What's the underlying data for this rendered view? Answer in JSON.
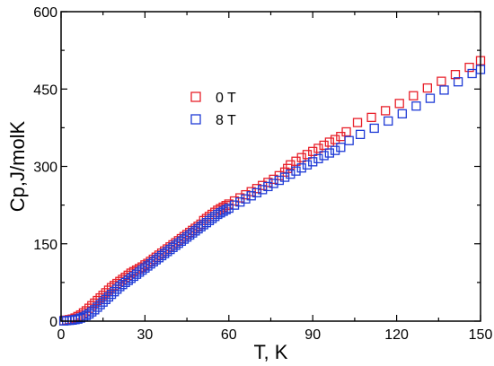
{
  "chart_data": {
    "type": "scatter",
    "xlabel": "T, K",
    "ylabel": "Cp,J/molK",
    "xlim": [
      0,
      150
    ],
    "ylim": [
      0,
      600
    ],
    "xticks": [
      "0",
      "30",
      "60",
      "90",
      "120",
      "150"
    ],
    "yticks": [
      "0",
      "150",
      "300",
      "450",
      "600"
    ],
    "grid": false,
    "legend_position": "upper-left",
    "series": [
      {
        "name": "0 T",
        "color": "#e8202a",
        "marker": "square-open",
        "points": [
          [
            1,
            1
          ],
          [
            2,
            2
          ],
          [
            3,
            3
          ],
          [
            4,
            4
          ],
          [
            5,
            6
          ],
          [
            6,
            9
          ],
          [
            7,
            12
          ],
          [
            8,
            16
          ],
          [
            9,
            20
          ],
          [
            10,
            25
          ],
          [
            11,
            30
          ],
          [
            12,
            35
          ],
          [
            13,
            40
          ],
          [
            14,
            45
          ],
          [
            15,
            50
          ],
          [
            16,
            55
          ],
          [
            17,
            60
          ],
          [
            18,
            65
          ],
          [
            19,
            69
          ],
          [
            20,
            73
          ],
          [
            21,
            77
          ],
          [
            22,
            81
          ],
          [
            23,
            85
          ],
          [
            24,
            89
          ],
          [
            25,
            93
          ],
          [
            26,
            96
          ],
          [
            27,
            99
          ],
          [
            28,
            102
          ],
          [
            29,
            105
          ],
          [
            30,
            109
          ],
          [
            31,
            112
          ],
          [
            32,
            116
          ],
          [
            33,
            120
          ],
          [
            34,
            124
          ],
          [
            35,
            128
          ],
          [
            36,
            132
          ],
          [
            37,
            136
          ],
          [
            38,
            140
          ],
          [
            39,
            144
          ],
          [
            40,
            148
          ],
          [
            41,
            152
          ],
          [
            42,
            156
          ],
          [
            43,
            160
          ],
          [
            44,
            164
          ],
          [
            45,
            168
          ],
          [
            46,
            172
          ],
          [
            47,
            176
          ],
          [
            48,
            180
          ],
          [
            49,
            184
          ],
          [
            50,
            188
          ],
          [
            51,
            195
          ],
          [
            52,
            199
          ],
          [
            53,
            203
          ],
          [
            54,
            207
          ],
          [
            55,
            211
          ],
          [
            56,
            215
          ],
          [
            57,
            218
          ],
          [
            58,
            221
          ],
          [
            59,
            224
          ],
          [
            60,
            227
          ],
          [
            62,
            233
          ],
          [
            64,
            239
          ],
          [
            66,
            245
          ],
          [
            68,
            251
          ],
          [
            70,
            257
          ],
          [
            72,
            263
          ],
          [
            74,
            269
          ],
          [
            76,
            275
          ],
          [
            78,
            282
          ],
          [
            80,
            289
          ],
          [
            81,
            296
          ],
          [
            82,
            303
          ],
          [
            84,
            310
          ],
          [
            86,
            317
          ],
          [
            88,
            323
          ],
          [
            90,
            329
          ],
          [
            92,
            335
          ],
          [
            94,
            341
          ],
          [
            96,
            347
          ],
          [
            98,
            352
          ],
          [
            100,
            358
          ],
          [
            102,
            367
          ],
          [
            106,
            385
          ],
          [
            111,
            395
          ],
          [
            116,
            408
          ],
          [
            121,
            422
          ],
          [
            126,
            437
          ],
          [
            131,
            452
          ],
          [
            136,
            465
          ],
          [
            141,
            478
          ],
          [
            146,
            492
          ],
          [
            150,
            505
          ]
        ]
      },
      {
        "name": "8 T",
        "color": "#1f3bd6",
        "marker": "square-open",
        "points": [
          [
            1,
            0.5
          ],
          [
            2,
            1
          ],
          [
            3,
            1.5
          ],
          [
            4,
            2
          ],
          [
            5,
            3
          ],
          [
            6,
            4
          ],
          [
            7,
            6
          ],
          [
            8,
            8
          ],
          [
            9,
            11
          ],
          [
            10,
            14
          ],
          [
            11,
            18
          ],
          [
            12,
            22
          ],
          [
            13,
            27
          ],
          [
            14,
            32
          ],
          [
            15,
            37
          ],
          [
            16,
            42
          ],
          [
            17,
            47
          ],
          [
            18,
            52
          ],
          [
            19,
            57
          ],
          [
            20,
            62
          ],
          [
            21,
            67
          ],
          [
            22,
            71
          ],
          [
            23,
            75
          ],
          [
            24,
            79
          ],
          [
            25,
            83
          ],
          [
            26,
            87
          ],
          [
            27,
            91
          ],
          [
            28,
            95
          ],
          [
            29,
            99
          ],
          [
            30,
            103
          ],
          [
            31,
            107
          ],
          [
            32,
            111
          ],
          [
            33,
            115
          ],
          [
            34,
            119
          ],
          [
            35,
            123
          ],
          [
            36,
            127
          ],
          [
            37,
            131
          ],
          [
            38,
            135
          ],
          [
            39,
            139
          ],
          [
            40,
            143
          ],
          [
            41,
            147
          ],
          [
            42,
            151
          ],
          [
            43,
            155
          ],
          [
            44,
            159
          ],
          [
            45,
            163
          ],
          [
            46,
            167
          ],
          [
            47,
            171
          ],
          [
            48,
            175
          ],
          [
            49,
            179
          ],
          [
            50,
            183
          ],
          [
            51,
            187
          ],
          [
            52,
            191
          ],
          [
            53,
            195
          ],
          [
            54,
            199
          ],
          [
            55,
            203
          ],
          [
            56,
            207
          ],
          [
            57,
            210
          ],
          [
            58,
            213
          ],
          [
            59,
            216
          ],
          [
            60,
            219
          ],
          [
            62,
            225
          ],
          [
            64,
            231
          ],
          [
            66,
            237
          ],
          [
            68,
            243
          ],
          [
            70,
            249
          ],
          [
            72,
            255
          ],
          [
            74,
            261
          ],
          [
            76,
            267
          ],
          [
            78,
            273
          ],
          [
            80,
            279
          ],
          [
            82,
            285
          ],
          [
            84,
            291
          ],
          [
            86,
            297
          ],
          [
            88,
            303
          ],
          [
            90,
            309
          ],
          [
            92,
            315
          ],
          [
            94,
            321
          ],
          [
            96,
            326
          ],
          [
            98,
            331
          ],
          [
            100,
            337
          ],
          [
            103,
            350
          ],
          [
            107,
            362
          ],
          [
            112,
            374
          ],
          [
            117,
            388
          ],
          [
            122,
            402
          ],
          [
            127,
            417
          ],
          [
            132,
            432
          ],
          [
            137,
            448
          ],
          [
            142,
            464
          ],
          [
            147,
            480
          ],
          [
            150,
            488
          ]
        ]
      }
    ]
  }
}
